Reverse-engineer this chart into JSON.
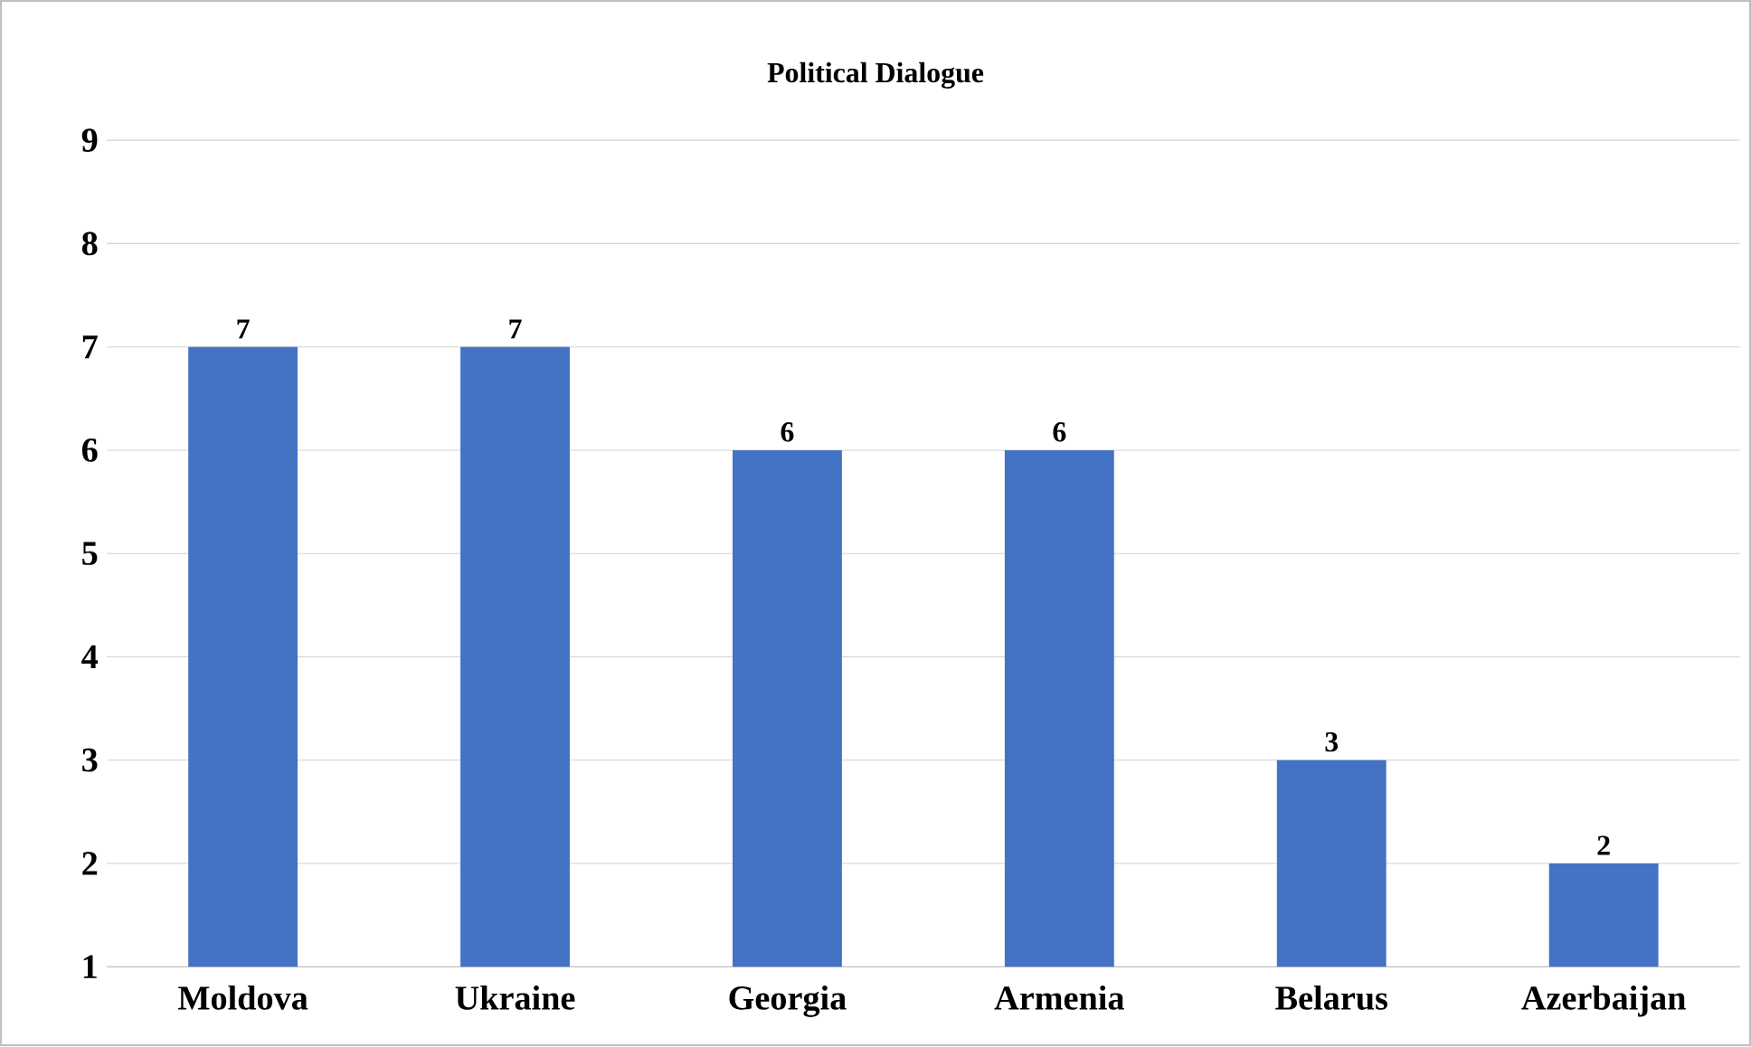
{
  "chart_data": {
    "type": "bar",
    "title": "Political Dialogue",
    "categories": [
      "Moldova",
      "Ukraine",
      "Georgia",
      "Armenia",
      "Belarus",
      "Azerbaijan"
    ],
    "values": [
      7,
      7,
      6,
      6,
      3,
      2
    ],
    "color": "#4472c4",
    "ylim": [
      1,
      9
    ],
    "yticks": [
      1,
      2,
      3,
      4,
      5,
      6,
      7,
      8,
      9
    ],
    "grid": "y",
    "data_labels": true
  }
}
